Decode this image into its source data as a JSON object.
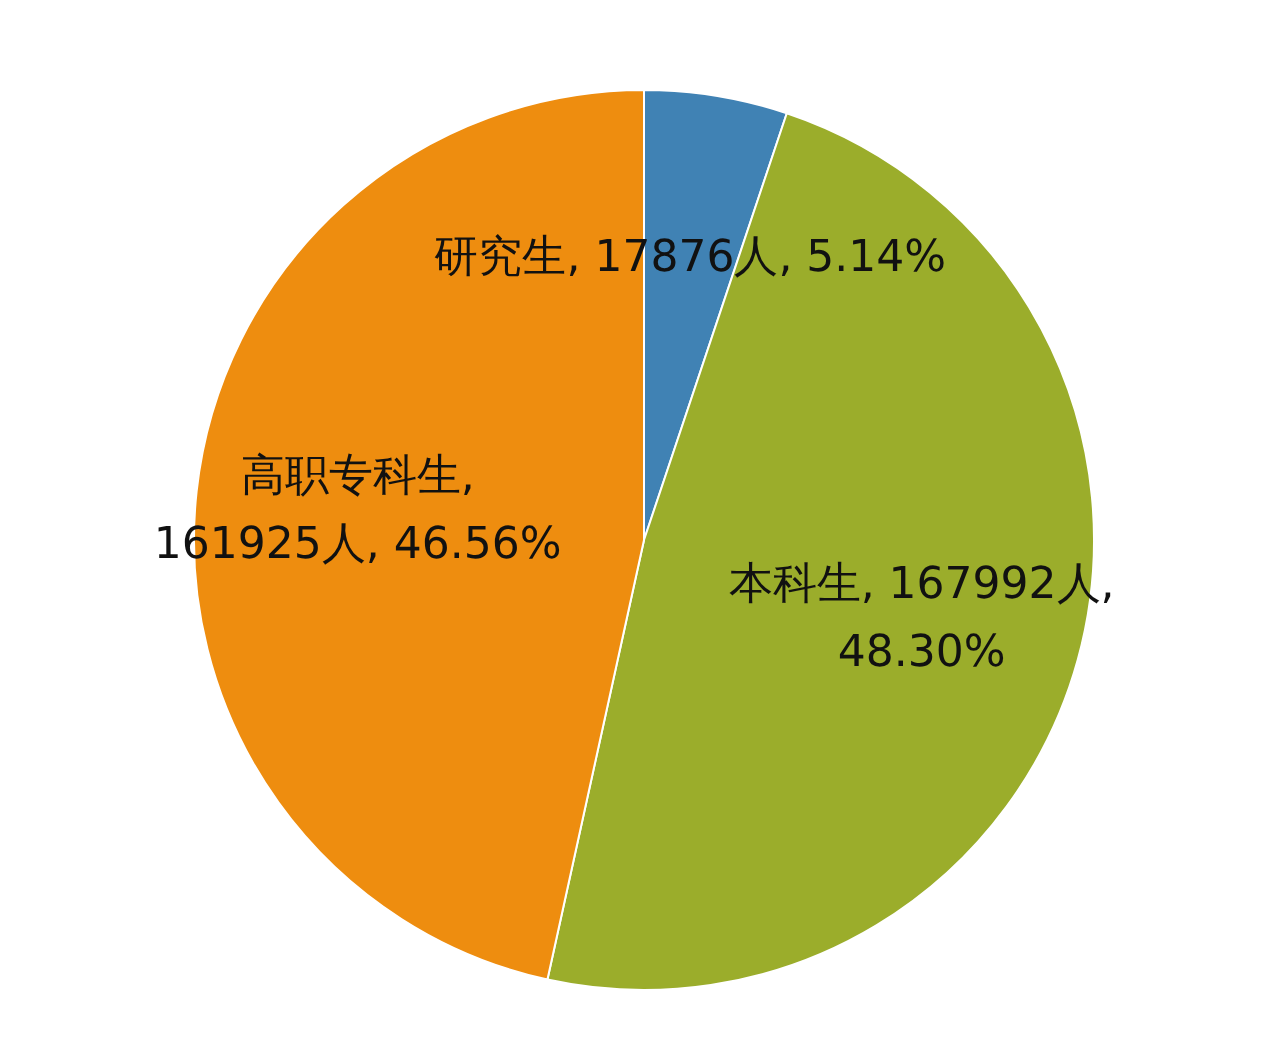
{
  "chart_data": {
    "type": "pie",
    "categories": [
      "研究生",
      "本科生",
      "高职专科生"
    ],
    "values": [
      17876,
      167992,
      161925
    ],
    "colors": [
      "#4082b4",
      "#9bad2b",
      "#ee8d0f"
    ],
    "value_labels": [
      ", 17876人, 5.14%",
      ", 167992人, 48.30%",
      ", 161925人, 46.56%"
    ]
  }
}
